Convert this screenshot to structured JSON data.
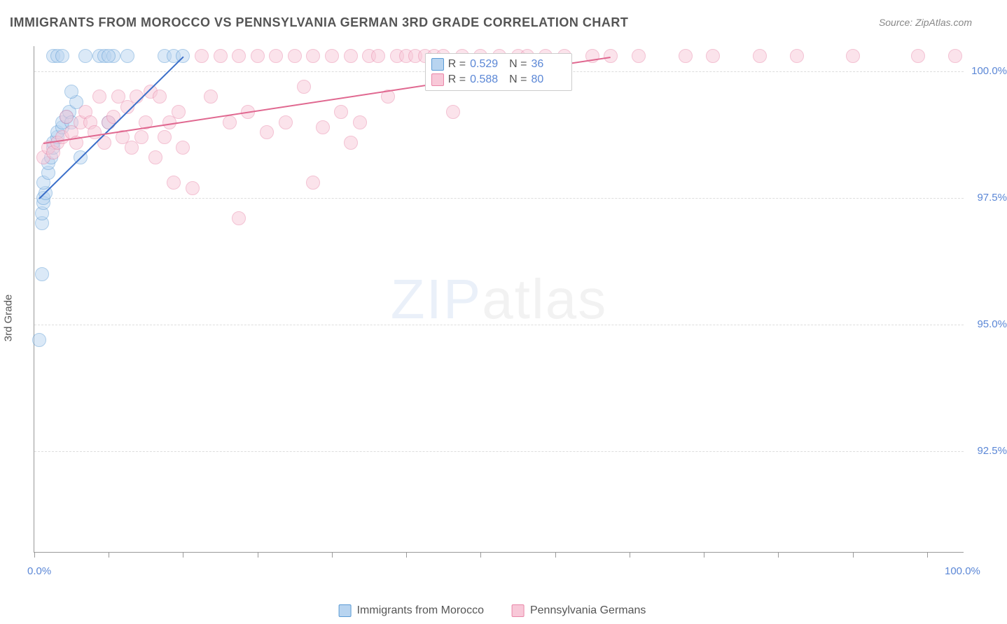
{
  "title": "IMMIGRANTS FROM MOROCCO VS PENNSYLVANIA GERMAN 3RD GRADE CORRELATION CHART",
  "source_prefix": "Source: ",
  "source": "ZipAtlas.com",
  "y_axis_label": "3rd Grade",
  "watermark_bold": "ZIP",
  "watermark_thin": "atlas",
  "chart": {
    "type": "scatter",
    "xlim": [
      0,
      100
    ],
    "ylim": [
      90.5,
      100.5
    ],
    "y_ticks": [
      92.5,
      95.0,
      97.5,
      100.0
    ],
    "y_tick_labels": [
      "92.5%",
      "95.0%",
      "97.5%",
      "100.0%"
    ],
    "x_ticks": [
      0,
      8,
      16,
      24,
      32,
      40,
      48,
      56,
      64,
      72,
      80,
      88,
      96
    ],
    "x_tick_labels": {
      "0": "0.0%",
      "100": "100.0%"
    },
    "grid_color": "#dddddd",
    "axis_color": "#999999",
    "background_color": "#ffffff",
    "series": [
      {
        "name": "Immigrants from Morocco",
        "color_fill": "#b8d4f0",
        "color_stroke": "#5b9bd5",
        "fill_opacity": 0.5,
        "marker_radius": 10,
        "R": "0.529",
        "N": "36",
        "trend": {
          "x1": 0.5,
          "y1": 97.5,
          "x2": 16,
          "y2": 100.3,
          "color": "#3b6fc9",
          "width": 2
        },
        "points": [
          [
            0.5,
            94.7
          ],
          [
            0.8,
            96.0
          ],
          [
            0.8,
            97.0
          ],
          [
            0.8,
            97.2
          ],
          [
            1.0,
            97.4
          ],
          [
            1.0,
            97.5
          ],
          [
            1.2,
            97.6
          ],
          [
            1.0,
            97.8
          ],
          [
            1.5,
            98.0
          ],
          [
            1.5,
            98.2
          ],
          [
            1.8,
            98.3
          ],
          [
            2.0,
            98.5
          ],
          [
            2.0,
            98.6
          ],
          [
            2.5,
            98.7
          ],
          [
            2.5,
            98.8
          ],
          [
            3.0,
            98.9
          ],
          [
            3.0,
            99.0
          ],
          [
            3.5,
            99.1
          ],
          [
            3.8,
            99.2
          ],
          [
            4.0,
            99.0
          ],
          [
            4.5,
            99.4
          ],
          [
            2.0,
            100.3
          ],
          [
            2.5,
            100.3
          ],
          [
            3.0,
            100.3
          ],
          [
            4.0,
            99.6
          ],
          [
            5.0,
            98.3
          ],
          [
            5.5,
            100.3
          ],
          [
            7.0,
            100.3
          ],
          [
            7.5,
            100.3
          ],
          [
            8.0,
            99.0
          ],
          [
            8.5,
            100.3
          ],
          [
            10.0,
            100.3
          ],
          [
            14.0,
            100.3
          ],
          [
            15.0,
            100.3
          ],
          [
            16.0,
            100.3
          ],
          [
            8.0,
            100.3
          ]
        ]
      },
      {
        "name": "Pennsylvania Germans",
        "color_fill": "#f8c8d8",
        "color_stroke": "#e986a8",
        "fill_opacity": 0.5,
        "marker_radius": 10,
        "R": "0.588",
        "N": "80",
        "trend": {
          "x1": 1,
          "y1": 98.6,
          "x2": 62,
          "y2": 100.3,
          "color": "#e06890",
          "width": 2
        },
        "points": [
          [
            1.0,
            98.3
          ],
          [
            1.5,
            98.5
          ],
          [
            2.0,
            98.4
          ],
          [
            2.5,
            98.6
          ],
          [
            3.0,
            98.7
          ],
          [
            3.5,
            99.1
          ],
          [
            4.0,
            98.8
          ],
          [
            4.5,
            98.6
          ],
          [
            5.0,
            99.0
          ],
          [
            5.5,
            99.2
          ],
          [
            6.0,
            99.0
          ],
          [
            6.5,
            98.8
          ],
          [
            7.0,
            99.5
          ],
          [
            7.5,
            98.6
          ],
          [
            8.0,
            99.0
          ],
          [
            8.5,
            99.1
          ],
          [
            9.0,
            99.5
          ],
          [
            9.5,
            98.7
          ],
          [
            10.0,
            99.3
          ],
          [
            10.5,
            98.5
          ],
          [
            11.0,
            99.5
          ],
          [
            11.5,
            98.7
          ],
          [
            12.0,
            99.0
          ],
          [
            12.5,
            99.6
          ],
          [
            13.0,
            98.3
          ],
          [
            13.5,
            99.5
          ],
          [
            14.0,
            98.7
          ],
          [
            14.5,
            99.0
          ],
          [
            15.0,
            97.8
          ],
          [
            15.5,
            99.2
          ],
          [
            16.0,
            98.5
          ],
          [
            17.0,
            97.7
          ],
          [
            18.0,
            100.3
          ],
          [
            19.0,
            99.5
          ],
          [
            20.0,
            100.3
          ],
          [
            21.0,
            99.0
          ],
          [
            22.0,
            100.3
          ],
          [
            22.0,
            97.1
          ],
          [
            23.0,
            99.2
          ],
          [
            24.0,
            100.3
          ],
          [
            25.0,
            98.8
          ],
          [
            26.0,
            100.3
          ],
          [
            27.0,
            99.0
          ],
          [
            28.0,
            100.3
          ],
          [
            29.0,
            99.7
          ],
          [
            30.0,
            97.8
          ],
          [
            30.0,
            100.3
          ],
          [
            31.0,
            98.9
          ],
          [
            32.0,
            100.3
          ],
          [
            33.0,
            99.2
          ],
          [
            34.0,
            100.3
          ],
          [
            34.0,
            98.6
          ],
          [
            35.0,
            99.0
          ],
          [
            36.0,
            100.3
          ],
          [
            37.0,
            100.3
          ],
          [
            38.0,
            99.5
          ],
          [
            39.0,
            100.3
          ],
          [
            40.0,
            100.3
          ],
          [
            41.0,
            100.3
          ],
          [
            42.0,
            100.3
          ],
          [
            43.0,
            100.3
          ],
          [
            44.0,
            100.3
          ],
          [
            45.0,
            99.2
          ],
          [
            46.0,
            100.3
          ],
          [
            48.0,
            100.3
          ],
          [
            50.0,
            100.3
          ],
          [
            52.0,
            100.3
          ],
          [
            53.0,
            100.3
          ],
          [
            55.0,
            100.3
          ],
          [
            57.0,
            100.3
          ],
          [
            60.0,
            100.3
          ],
          [
            62.0,
            100.3
          ],
          [
            65.0,
            100.3
          ],
          [
            70.0,
            100.3
          ],
          [
            73.0,
            100.3
          ],
          [
            78.0,
            100.3
          ],
          [
            82.0,
            100.3
          ],
          [
            88.0,
            100.3
          ],
          [
            95.0,
            100.3
          ],
          [
            99.0,
            100.3
          ]
        ]
      }
    ]
  },
  "legend_bottom": [
    {
      "swatch_fill": "#b8d4f0",
      "swatch_stroke": "#5b9bd5",
      "label": "Immigrants from Morocco"
    },
    {
      "swatch_fill": "#f8c8d8",
      "swatch_stroke": "#e986a8",
      "label": "Pennsylvania Germans"
    }
  ],
  "stats_box": {
    "r_label": "R =",
    "n_label": "N ="
  }
}
